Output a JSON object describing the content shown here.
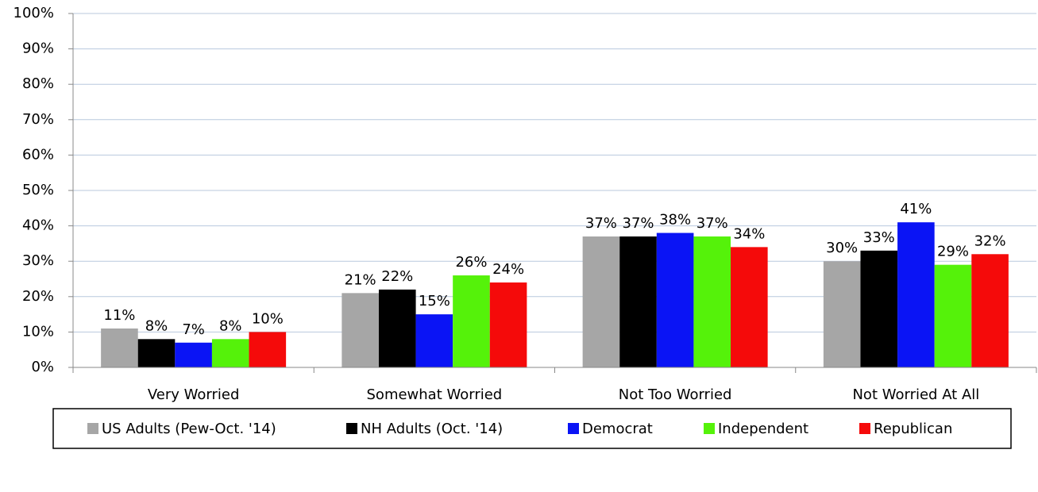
{
  "chart_data": {
    "type": "bar",
    "categories": [
      "Very Worried",
      "Somewhat Worried",
      "Not Too Worried",
      "Not Worried At All"
    ],
    "series": [
      {
        "name": "US Adults (Pew-Oct. '14)",
        "color": "#a6a6a6",
        "values": [
          11,
          21,
          37,
          30
        ],
        "value_labels": [
          "11%",
          "21%",
          "37%",
          "30%"
        ]
      },
      {
        "name": "NH Adults (Oct. '14)",
        "color": "#000000",
        "values": [
          8,
          22,
          37,
          33
        ],
        "value_labels": [
          "8%",
          "22%",
          "37%",
          "33%"
        ]
      },
      {
        "name": "Democrat",
        "color": "#0a14f5",
        "values": [
          7,
          15,
          38,
          41
        ],
        "value_labels": [
          "7%",
          "15%",
          "38%",
          "41%"
        ]
      },
      {
        "name": "Independent",
        "color": "#55f20a",
        "values": [
          8,
          26,
          37,
          29
        ],
        "value_labels": [
          "8%",
          "26%",
          "37%",
          "29%"
        ]
      },
      {
        "name": "Republican",
        "color": "#f50a0a",
        "values": [
          10,
          24,
          34,
          32
        ],
        "value_labels": [
          "10%",
          "24%",
          "34%",
          "32%"
        ]
      }
    ],
    "ylim": [
      0,
      100
    ],
    "yticks": [
      {
        "value": 0,
        "label": "0%"
      },
      {
        "value": 10,
        "label": "10%"
      },
      {
        "value": 20,
        "label": "20%"
      },
      {
        "value": 30,
        "label": "30%"
      },
      {
        "value": 40,
        "label": "40%"
      },
      {
        "value": 50,
        "label": "50%"
      },
      {
        "value": 60,
        "label": "60%"
      },
      {
        "value": 70,
        "label": "70%"
      },
      {
        "value": 80,
        "label": "80%"
      },
      {
        "value": 90,
        "label": "90%"
      },
      {
        "value": 100,
        "label": "100%"
      }
    ],
    "grid": true,
    "legend": "bottom"
  }
}
